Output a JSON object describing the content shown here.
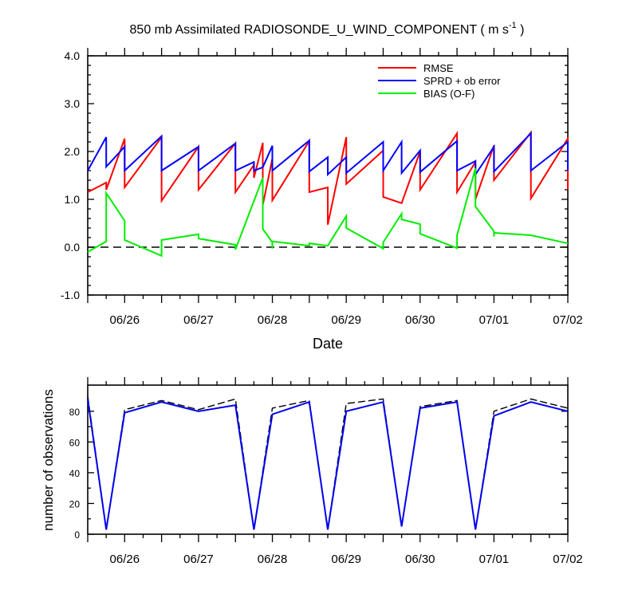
{
  "chart_data": [
    {
      "type": "line",
      "title": {
        "main": "850 mb Assimilated RADIOSONDE_U_WIND_COMPONENT ( m s",
        "unit_exp": "-1",
        "tail": " )"
      },
      "xlabel": "Date",
      "ylabel": "",
      "ylim": [
        -1.0,
        4.0
      ],
      "xlim": [
        0,
        6.5
      ],
      "yticks": [
        -1.0,
        0.0,
        1.0,
        2.0,
        3.0,
        4.0
      ],
      "ytick_labels": [
        "-1.0",
        "0.0",
        "1.0",
        "2.0",
        "3.0",
        "4.0"
      ],
      "xticks": [
        0.5,
        1.5,
        2.5,
        3.5,
        4.5,
        5.5,
        6.5
      ],
      "xtick_labels": [
        "06/26",
        "06/27",
        "06/28",
        "06/29",
        "06/30",
        "07/01",
        "07/02"
      ],
      "grid": false,
      "legend": "top-right",
      "reference_line": {
        "y": 0.0,
        "style": "dashed"
      },
      "series": [
        {
          "name": "RMSE",
          "color": "#ff0000",
          "points": [
            [
              0,
              1.15
            ],
            [
              0.25,
              1.35
            ],
            [
              0.25,
              1.2
            ],
            [
              0.5,
              2.27
            ],
            [
              0.5,
              1.25
            ],
            [
              1.0,
              2.3
            ],
            [
              1.0,
              0.97
            ],
            [
              1.5,
              2.1
            ],
            [
              1.5,
              1.2
            ],
            [
              2.0,
              2.17
            ],
            [
              2.0,
              1.15
            ],
            [
              2.25,
              1.72
            ],
            [
              2.25,
              1.45
            ],
            [
              2.37,
              2.18
            ],
            [
              2.37,
              0.88
            ],
            [
              2.5,
              1.85
            ],
            [
              2.5,
              0.98
            ],
            [
              3.0,
              2.22
            ],
            [
              3.0,
              1.15
            ],
            [
              3.25,
              1.25
            ],
            [
              3.25,
              0.47
            ],
            [
              3.5,
              2.3
            ],
            [
              3.5,
              1.32
            ],
            [
              4.0,
              2.02
            ],
            [
              4.0,
              1.05
            ],
            [
              4.25,
              0.92
            ],
            [
              4.5,
              2.0
            ],
            [
              4.5,
              1.2
            ],
            [
              5.0,
              2.38
            ],
            [
              5.0,
              1.15
            ],
            [
              5.25,
              1.78
            ],
            [
              5.25,
              1.0
            ],
            [
              5.5,
              2.13
            ],
            [
              5.5,
              1.4
            ],
            [
              6.0,
              2.4
            ],
            [
              6.0,
              1.02
            ],
            [
              6.5,
              2.27
            ],
            [
              6.5,
              1.2
            ]
          ]
        },
        {
          "name": "SPRD + ob error",
          "color": "#0000ff",
          "points": [
            [
              0,
              1.6
            ],
            [
              0.25,
              2.3
            ],
            [
              0.25,
              1.68
            ],
            [
              0.5,
              2.1
            ],
            [
              0.5,
              1.6
            ],
            [
              1.0,
              2.32
            ],
            [
              1.0,
              1.6
            ],
            [
              1.5,
              2.1
            ],
            [
              1.5,
              1.6
            ],
            [
              2.0,
              2.17
            ],
            [
              2.0,
              1.6
            ],
            [
              2.25,
              1.78
            ],
            [
              2.25,
              1.6
            ],
            [
              2.37,
              1.67
            ],
            [
              2.5,
              2.12
            ],
            [
              2.5,
              1.6
            ],
            [
              3.0,
              2.23
            ],
            [
              3.0,
              1.58
            ],
            [
              3.25,
              1.88
            ],
            [
              3.25,
              1.52
            ],
            [
              3.5,
              1.88
            ],
            [
              3.5,
              1.55
            ],
            [
              4.0,
              2.2
            ],
            [
              4.0,
              1.6
            ],
            [
              4.25,
              2.2
            ],
            [
              4.25,
              1.55
            ],
            [
              4.5,
              2.02
            ],
            [
              4.5,
              1.57
            ],
            [
              5.0,
              2.22
            ],
            [
              5.0,
              1.6
            ],
            [
              5.25,
              1.8
            ],
            [
              5.25,
              1.52
            ],
            [
              5.5,
              2.1
            ],
            [
              5.5,
              1.58
            ],
            [
              6.0,
              2.38
            ],
            [
              6.0,
              1.6
            ],
            [
              6.5,
              2.2
            ],
            [
              6.5,
              1.6
            ]
          ]
        },
        {
          "name": "BIAS (O-F)",
          "color": "#00ee00",
          "points": [
            [
              0,
              -0.1
            ],
            [
              0.25,
              0.12
            ],
            [
              0.25,
              1.13
            ],
            [
              0.5,
              0.55
            ],
            [
              0.5,
              0.15
            ],
            [
              1.0,
              -0.18
            ],
            [
              1.0,
              0.15
            ],
            [
              1.5,
              0.27
            ],
            [
              1.5,
              0.18
            ],
            [
              2.0,
              0.05
            ],
            [
              2.0,
              -0.05
            ],
            [
              2.37,
              1.45
            ],
            [
              2.37,
              0.38
            ],
            [
              2.5,
              0.1
            ],
            [
              2.5,
              -0.03
            ],
            [
              2.5,
              0.12
            ],
            [
              3.0,
              0.03
            ],
            [
              3.0,
              0.08
            ],
            [
              3.25,
              0.03
            ],
            [
              3.5,
              0.65
            ],
            [
              3.5,
              0.4
            ],
            [
              4.0,
              -0.03
            ],
            [
              4.0,
              0.1
            ],
            [
              4.25,
              0.7
            ],
            [
              4.25,
              0.58
            ],
            [
              4.5,
              0.48
            ],
            [
              4.5,
              0.28
            ],
            [
              5.0,
              -0.02
            ],
            [
              5.0,
              0.25
            ],
            [
              5.25,
              1.65
            ],
            [
              5.25,
              0.85
            ],
            [
              5.5,
              0.33
            ],
            [
              5.5,
              0.22
            ],
            [
              5.5,
              0.3
            ],
            [
              6.0,
              0.25
            ],
            [
              6.5,
              0.08
            ]
          ]
        }
      ]
    },
    {
      "type": "line",
      "title": "",
      "xlabel": "",
      "ylabel": "number of observations",
      "ylim": [
        0,
        97
      ],
      "xlim": [
        0,
        6.5
      ],
      "yticks": [
        0,
        20,
        40,
        60,
        80
      ],
      "ytick_labels": [
        "0",
        "20",
        "40",
        "60",
        "80"
      ],
      "xticks": [
        0.5,
        1.5,
        2.5,
        3.5,
        4.5,
        5.5,
        6.5
      ],
      "xtick_labels": [
        "06/26",
        "06/27",
        "06/28",
        "06/29",
        "06/30",
        "07/01",
        "07/02"
      ],
      "grid": false,
      "series": [
        {
          "name": "",
          "style": "dashed",
          "color": "#000000",
          "points": [
            [
              0,
              90
            ],
            [
              0.25,
              3
            ],
            [
              0.5,
              81
            ],
            [
              1.0,
              87
            ],
            [
              1.5,
              81
            ],
            [
              2.0,
              88
            ],
            [
              2.25,
              3
            ],
            [
              2.5,
              82
            ],
            [
              3.0,
              87
            ],
            [
              3.25,
              3
            ],
            [
              3.5,
              85
            ],
            [
              4.0,
              88
            ],
            [
              4.25,
              5
            ],
            [
              4.5,
              83
            ],
            [
              5.0,
              87
            ],
            [
              5.25,
              3
            ],
            [
              5.5,
              80
            ],
            [
              6.0,
              88
            ],
            [
              6.5,
              82
            ]
          ]
        },
        {
          "name": "",
          "style": "solid",
          "color": "#0000ee",
          "points": [
            [
              0,
              88
            ],
            [
              0.25,
              3
            ],
            [
              0.5,
              79
            ],
            [
              1.0,
              86
            ],
            [
              1.5,
              80
            ],
            [
              2.0,
              84
            ],
            [
              2.25,
              3
            ],
            [
              2.5,
              78
            ],
            [
              3.0,
              86
            ],
            [
              3.25,
              3
            ],
            [
              3.5,
              80
            ],
            [
              4.0,
              86
            ],
            [
              4.25,
              5
            ],
            [
              4.5,
              82
            ],
            [
              5.0,
              86
            ],
            [
              5.25,
              3
            ],
            [
              5.5,
              77
            ],
            [
              6.0,
              86
            ],
            [
              6.5,
              80
            ]
          ]
        }
      ]
    }
  ]
}
